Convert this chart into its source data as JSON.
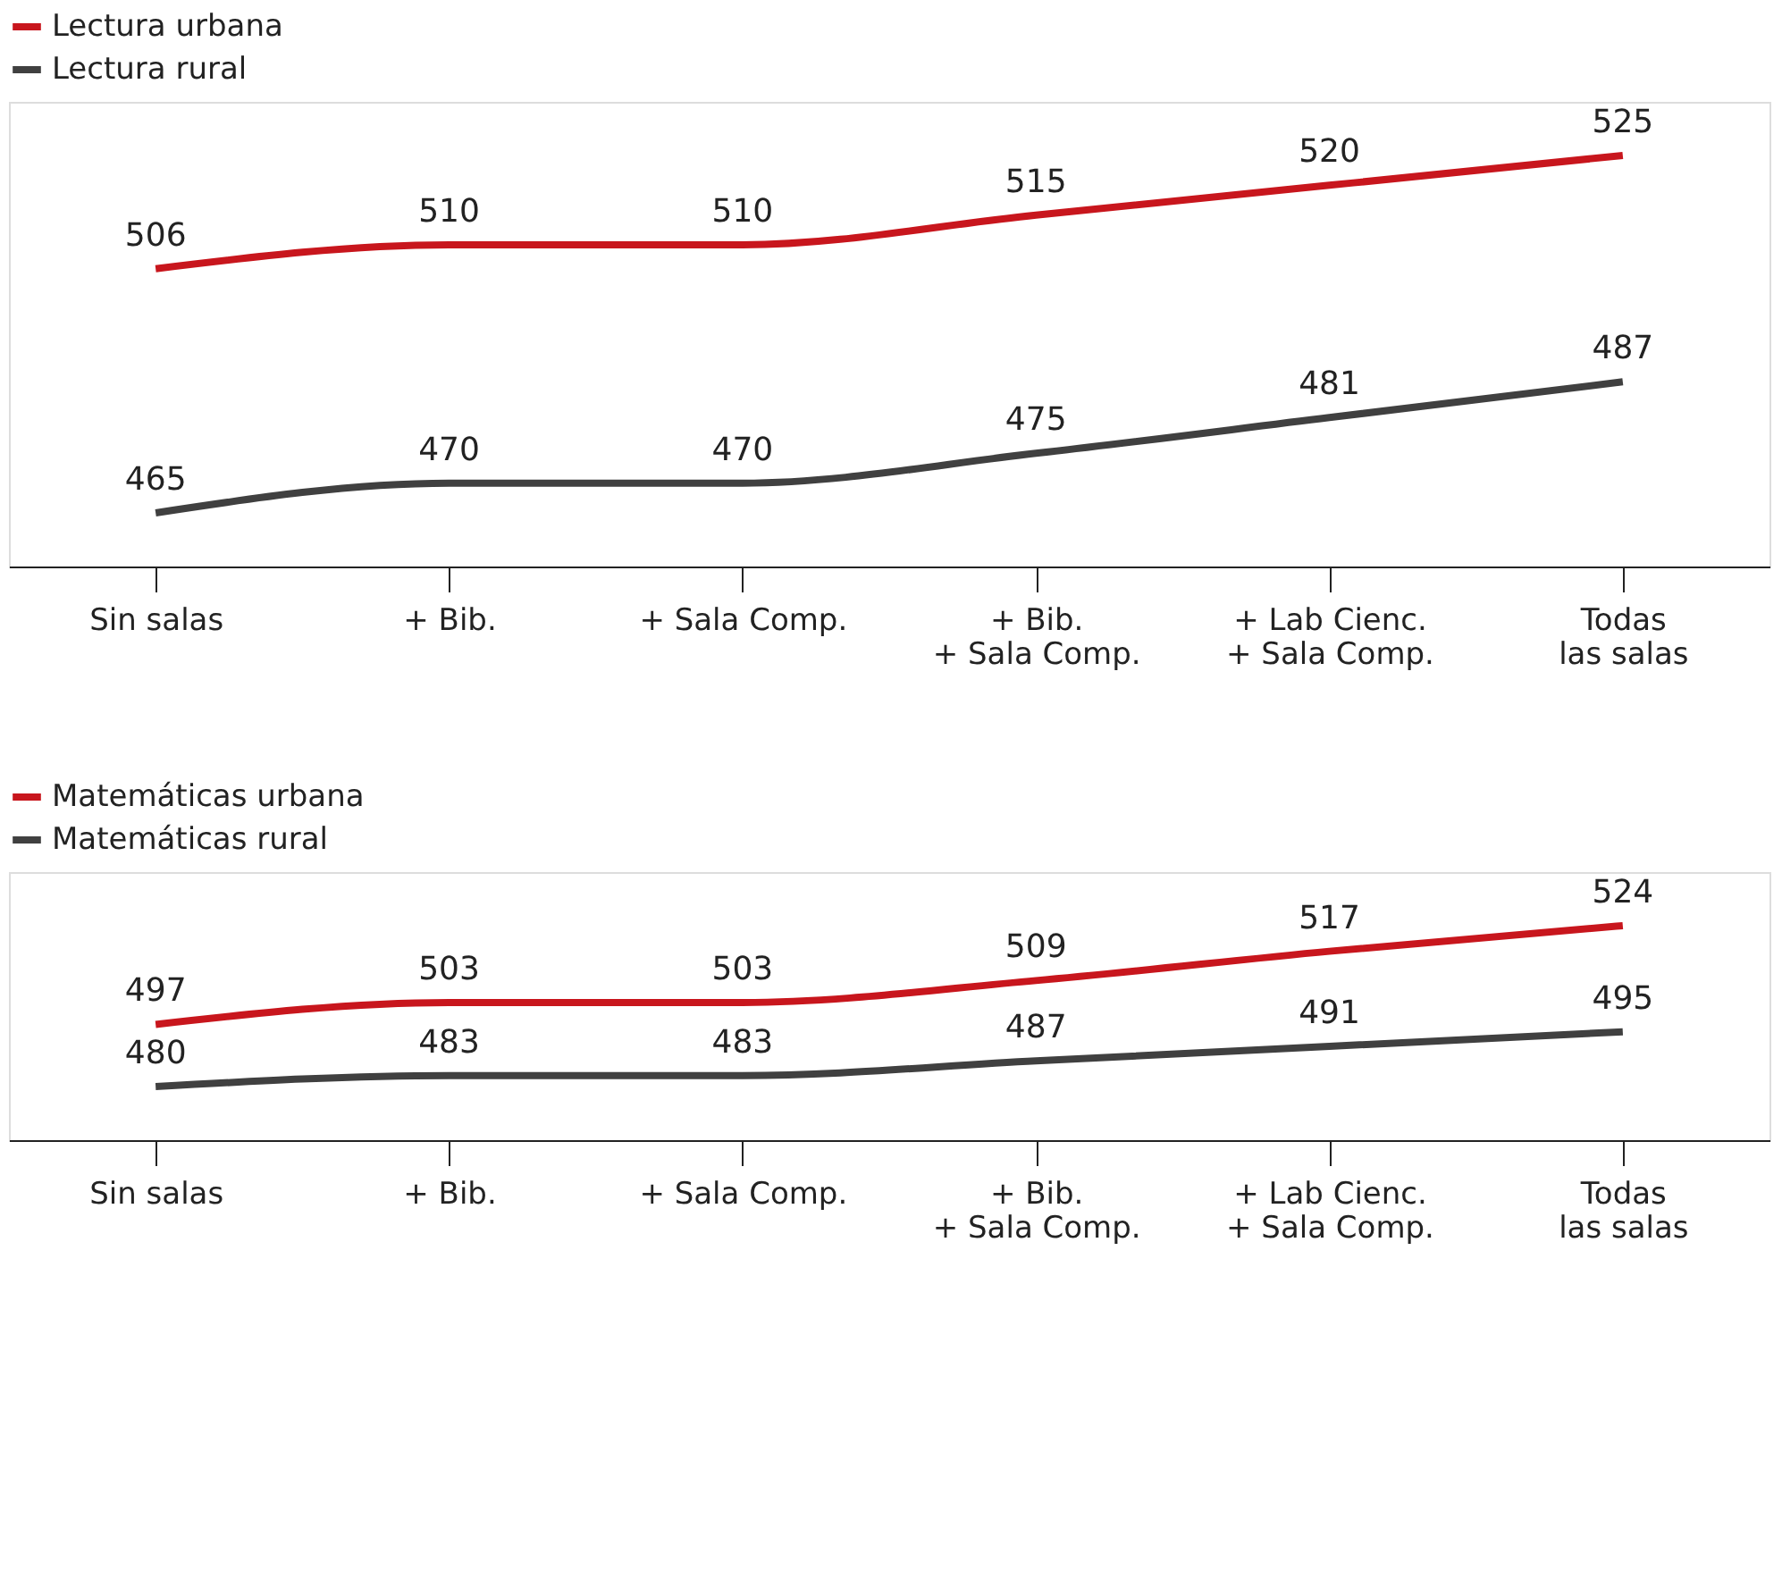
{
  "chart_data": [
    {
      "type": "line",
      "categories": [
        "Sin salas",
        "+ Bib.",
        "+ Sala Comp.",
        "+ Bib.\n+ Sala Comp.",
        "+ Lab Cienc.\n+ Sala Comp.",
        "Todas\nlas salas"
      ],
      "data_labels": true,
      "legend": "top left",
      "grid": false,
      "tick_labels": "x",
      "marker": "none",
      "line_style": "solid",
      "series": [
        {
          "name": "Lectura urbana",
          "color": "#c8161d",
          "values": [
            506,
            510,
            510,
            515,
            520,
            525
          ]
        },
        {
          "name": "Lectura rural",
          "color": "#404040",
          "values": [
            465,
            470,
            470,
            475,
            481,
            487
          ]
        }
      ]
    },
    {
      "type": "line",
      "categories": [
        "Sin salas",
        "+ Bib.",
        "+ Sala Comp.",
        "+ Bib.\n+ Sala Comp.",
        "+ Lab Cienc.\n+ Sala Comp.",
        "Todas\nlas salas"
      ],
      "data_labels": true,
      "legend": "top left",
      "grid": false,
      "tick_labels": "x",
      "marker": "none",
      "line_style": "solid",
      "series": [
        {
          "name": "Matemáticas urbana",
          "color": "#c8161d",
          "values": [
            497,
            503,
            503,
            509,
            517,
            524
          ]
        },
        {
          "name": "Matemáticas rural",
          "color": "#404040",
          "values": [
            480,
            483,
            483,
            487,
            491,
            495
          ]
        }
      ]
    }
  ]
}
